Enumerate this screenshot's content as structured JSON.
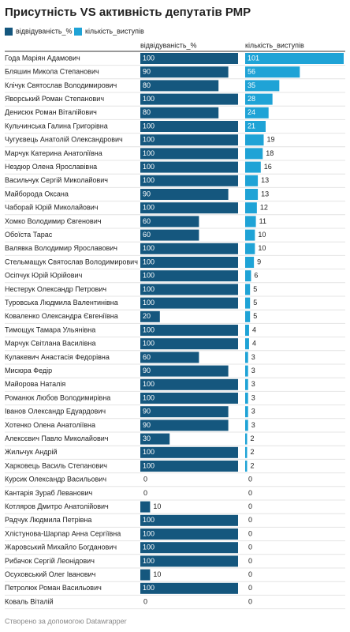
{
  "chart_data": {
    "type": "bar",
    "title": "Присутність VS активність депутатів РМР",
    "categories": [
      "Года Маріян Адамович",
      "Бляшин Микола Степанович",
      "Клічук Святослав Володимирович",
      "Яворський Роман Степанович",
      "Денисюк Роман Віталійович",
      "Кульчинська Галина Григорівна",
      "Чугуєвець Анатолій Олександрович",
      "Марчук Катерина Анатоліївна",
      "Нездюр Олена Ярославівна",
      "Васильчук Сергій Миколайович",
      "Майборода Оксана",
      "Чаборай Юрій Миколайович",
      "Хомко Володимир Євгенович",
      "Обоїста Тарас",
      "Валявка Володимир Ярославович",
      "Стельмащук Святослав Володимирович",
      "Осіпчук Юрій Юрійович",
      "Нестерук Олександр Петрович",
      "Туровська Людмила Валентинівна",
      "Коваленко Олександра Євгеніївна",
      "Тимощук Тамара Ульянівна",
      "Марчук Світлана Василівна",
      "Кулакевич Анастасія Федорівна",
      "Мисюра Федір",
      "Майорова Наталія",
      "Романюк Любов Володимирівна",
      "Іванов Олександр Едуардович",
      "Хотенко Олена Анатоліївна",
      "Алексєвич Павло Миколайович",
      "Жильчук Андрій",
      "Харковець Василь Степанович",
      "Курсик Олександр Васильович",
      "Кантарія Зураб Леванович",
      "Котляров Дмитро Анатолійович",
      "Радчук Людмила Петрівна",
      "Хлістунова-Шарпар Анна Сергіївна",
      "Жаровський Михайло Богданович",
      "Рибачок Сергій Леонідович",
      "Осуховський Олег Іванович",
      "Петролюк Роман Васильович",
      "Коваль Віталій"
    ],
    "series": [
      {
        "name": "відвідуваність_%",
        "color": "#15577e",
        "values": [
          100,
          90,
          80,
          100,
          80,
          100,
          100,
          100,
          100,
          100,
          90,
          100,
          60,
          60,
          100,
          100,
          100,
          100,
          100,
          20,
          100,
          100,
          60,
          90,
          100,
          100,
          90,
          90,
          30,
          100,
          100,
          0,
          0,
          10,
          100,
          100,
          100,
          100,
          10,
          100,
          0
        ]
      },
      {
        "name": "кількість_виступів",
        "color": "#1fa3d6",
        "values": [
          101,
          56,
          35,
          28,
          24,
          21,
          19,
          18,
          16,
          13,
          13,
          12,
          11,
          10,
          10,
          9,
          6,
          5,
          5,
          5,
          4,
          4,
          3,
          3,
          3,
          3,
          3,
          3,
          2,
          2,
          2,
          0,
          0,
          0,
          0,
          0,
          0,
          0,
          0,
          0,
          0
        ]
      }
    ],
    "footer": "Створено за допомогою Datawrapper"
  }
}
